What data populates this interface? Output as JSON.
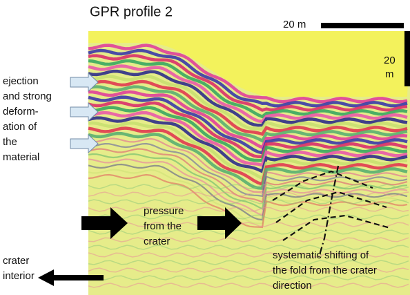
{
  "title": "GPR profile 2",
  "scale": {
    "horizontal": "20 m",
    "vertical": [
      "20",
      "m"
    ]
  },
  "labels": {
    "ejection": [
      "ejection",
      "and strong",
      "deform-",
      "ation of",
      "the",
      "material"
    ],
    "pressure": [
      "pressure",
      "from the",
      "crater"
    ],
    "shifting": [
      "systematic shifting of",
      "the fold from the crater",
      "direction"
    ],
    "crater_interior": [
      "crater",
      "interior"
    ]
  }
}
